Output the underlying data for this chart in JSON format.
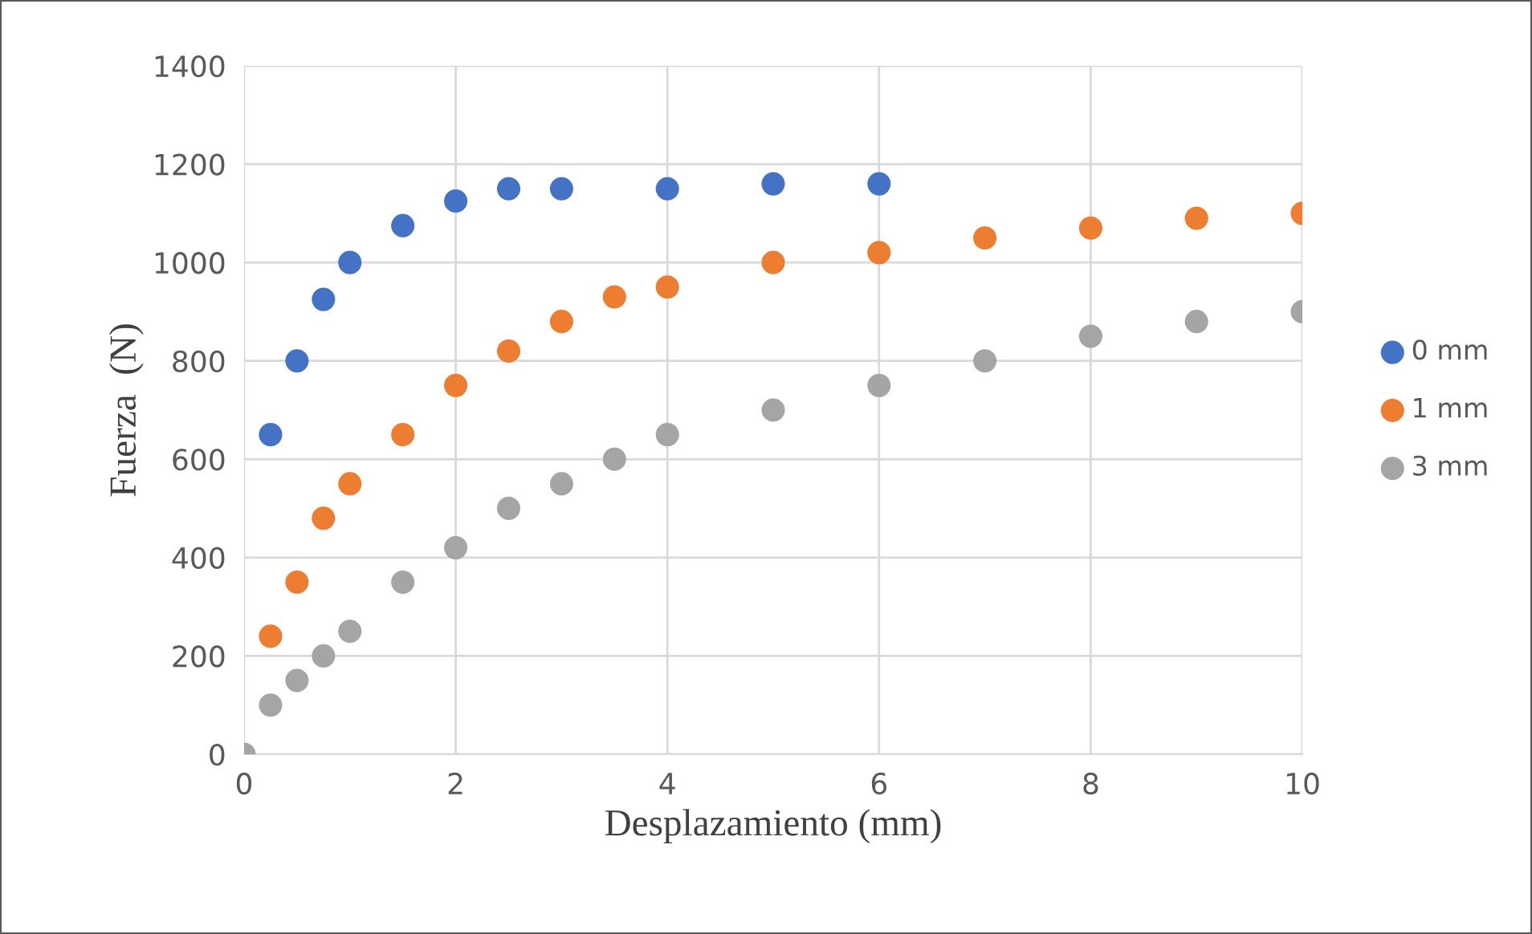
{
  "chart_data": {
    "type": "scatter",
    "xlabel": "Desplazamiento (mm)",
    "ylabel": "Fuerza  (N)",
    "xlim": [
      0,
      10
    ],
    "xticks": [
      0,
      2,
      4,
      6,
      8,
      10
    ],
    "ylim": [
      0,
      1400
    ],
    "yticks": [
      0,
      200,
      400,
      600,
      800,
      1000,
      1200,
      1400
    ],
    "grid": true,
    "legend": "right",
    "marker": "circle",
    "series": [
      {
        "name": "0 mm",
        "color": "#4472c4",
        "x": [
          0.25,
          0.5,
          0.75,
          1,
          1.5,
          2,
          2.5,
          3,
          4,
          5,
          6
        ],
        "values": [
          650,
          800,
          925,
          1000,
          1075,
          1125,
          1150,
          1150,
          1150,
          1160,
          1160
        ]
      },
      {
        "name": "1 mm",
        "color": "#ed7d31",
        "x": [
          0.25,
          0.5,
          0.75,
          1,
          1.5,
          2,
          2.5,
          3,
          3.5,
          4,
          5,
          6,
          7,
          8,
          9,
          10
        ],
        "values": [
          240,
          350,
          480,
          550,
          650,
          750,
          820,
          880,
          930,
          950,
          1000,
          1020,
          1050,
          1070,
          1090,
          1100
        ]
      },
      {
        "name": "3 mm",
        "color": "#a5a5a5",
        "x": [
          0,
          0.25,
          0.5,
          0.75,
          1,
          1.5,
          2,
          2.5,
          3,
          3.5,
          4,
          5,
          6,
          7,
          8,
          9,
          10
        ],
        "values": [
          0,
          100,
          150,
          200,
          250,
          350,
          420,
          500,
          550,
          600,
          650,
          700,
          750,
          800,
          850,
          880,
          900
        ]
      }
    ]
  }
}
